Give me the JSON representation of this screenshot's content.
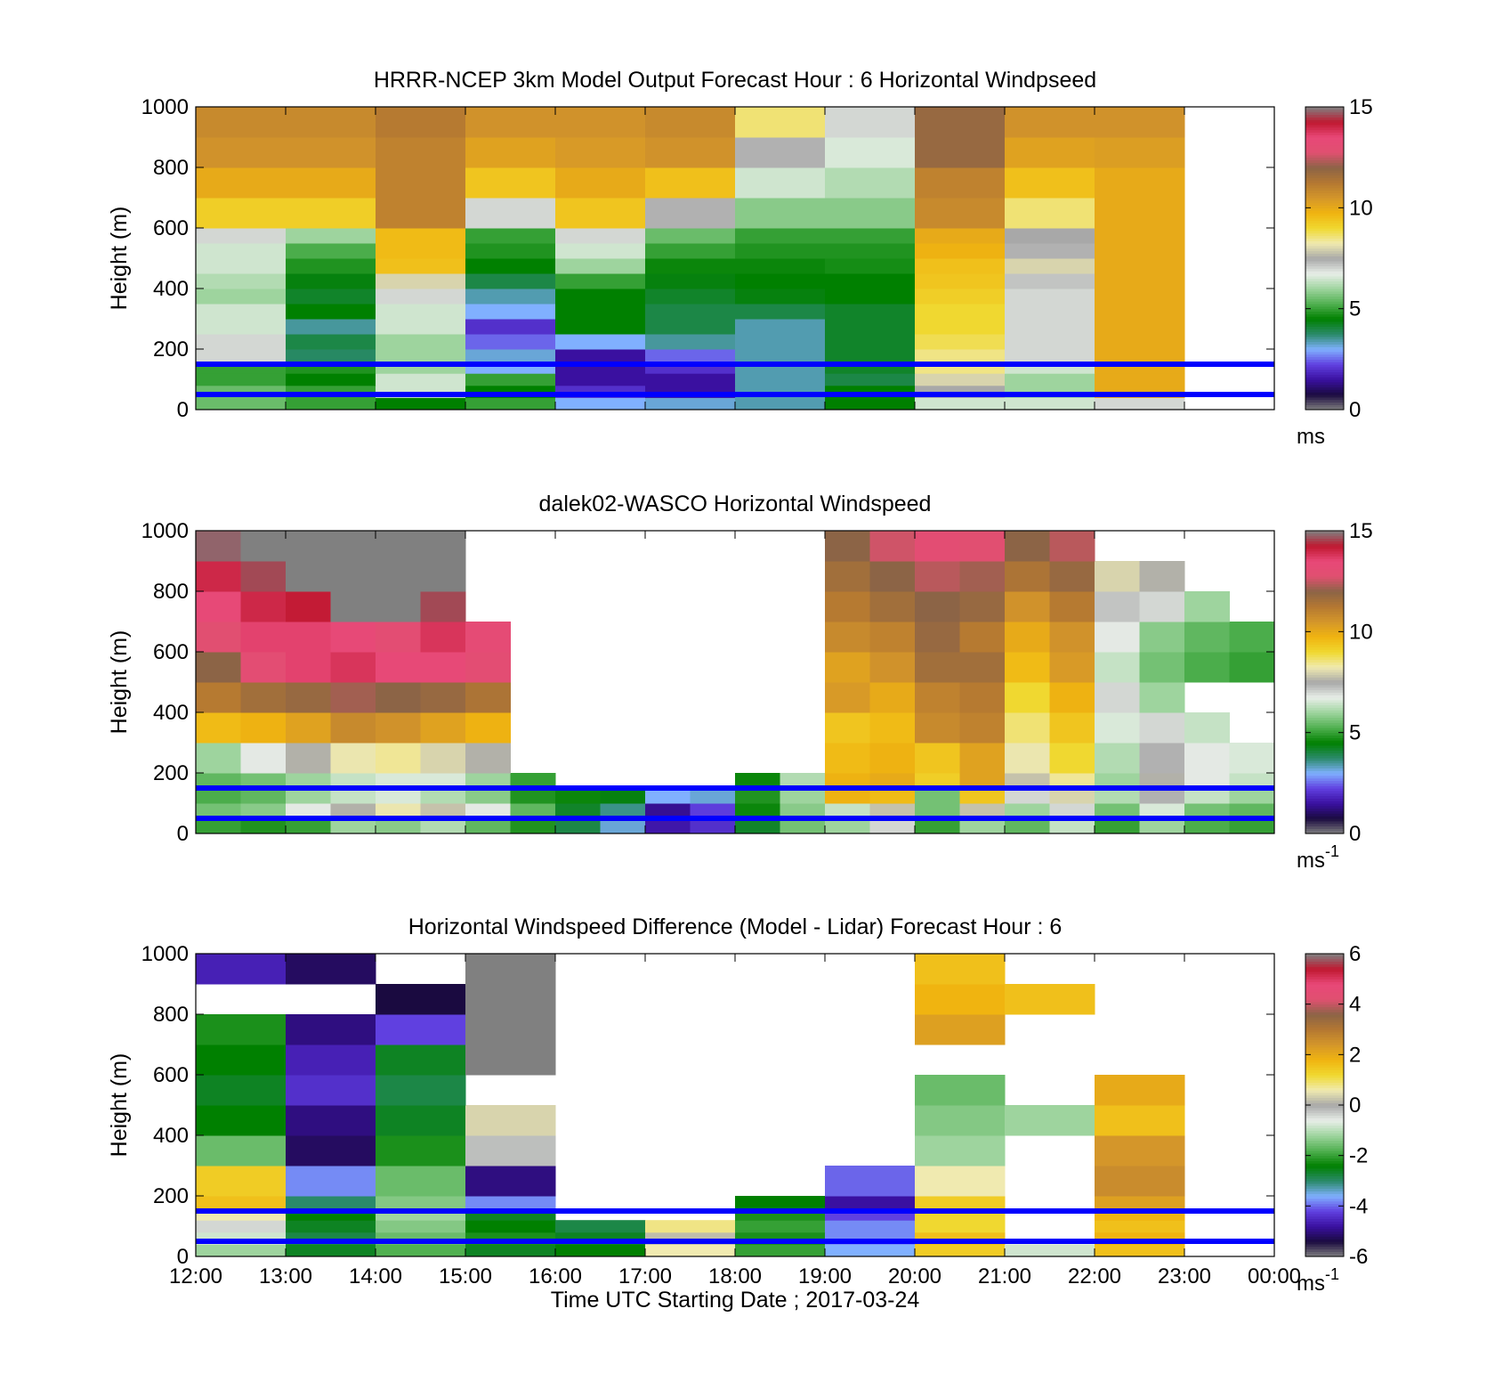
{
  "figure": {
    "xlabel": "Time UTC  Starting Date ; 2017-03-24",
    "xticks": [
      "12:00",
      "13:00",
      "14:00",
      "15:00",
      "16:00",
      "17:00",
      "18:00",
      "19:00",
      "20:00",
      "21:00",
      "22:00",
      "23:00",
      "00:00"
    ]
  },
  "colorbar_palette": [
    "#808080",
    "#1a0a40",
    "#3a10a0",
    "#6040e0",
    "#80b0ff",
    "#2a8a6a",
    "#008000",
    "#50b050",
    "#9ed49e",
    "#e8eee8",
    "#a8a8a8",
    "#f0eab0",
    "#f0d830",
    "#f0b410",
    "#d4962a",
    "#b47832",
    "#8c6446",
    "#e05070",
    "#e84878",
    "#c01830",
    "#808080"
  ],
  "chart_data": [
    {
      "type": "heatmap",
      "title": "HRRR-NCEP 3km Model Output   Forecast Hour : 6 Horizontal Windpseed",
      "ylabel": "Height (m)",
      "yticks": [
        "0",
        "200",
        "400",
        "600",
        "800",
        "1000"
      ],
      "ylim": [
        0,
        1000
      ],
      "xlim": [
        "12:00",
        "00:00"
      ],
      "colorbar": {
        "ticks": [
          "0",
          "5",
          "10",
          "15"
        ],
        "range": [
          0,
          15
        ],
        "unit": "ms",
        "unit_sup": ""
      },
      "reference_lines_m": [
        50,
        150
      ],
      "reference_line_color": "#0000ff",
      "heights_m": [
        40,
        80,
        120,
        160,
        200,
        250,
        300,
        350,
        400,
        450,
        500,
        550,
        600,
        700,
        800,
        900,
        1000
      ],
      "times": [
        "12:00",
        "13:00",
        "14:00",
        "15:00",
        "16:00",
        "17:00",
        "18:00",
        "19:00",
        "20:00",
        "21:00",
        "22:00"
      ],
      "values_ms": [
        [
          5.5,
          5.0,
          4.5,
          5.0,
          3.0,
          3.2,
          3.4,
          4.5,
          6.5,
          6.5,
          7.0
        ],
        [
          5.5,
          5.0,
          6.5,
          4.5,
          2.0,
          1.5,
          3.4,
          4.5,
          7.5,
          6.0,
          10.0
        ],
        [
          5.0,
          4.5,
          6.5,
          5.0,
          1.5,
          1.5,
          3.4,
          4.0,
          8.0,
          6.0,
          10.0
        ],
        [
          5.0,
          4.8,
          6.0,
          3.0,
          1.5,
          2.0,
          3.4,
          4.2,
          8.5,
          6.5,
          10.0
        ],
        [
          7.0,
          3.8,
          6.0,
          3.2,
          1.5,
          2.5,
          3.4,
          4.2,
          8.5,
          7.0,
          10.0
        ],
        [
          7.0,
          4.0,
          6.0,
          2.5,
          3.0,
          3.5,
          3.4,
          4.2,
          8.8,
          7.0,
          10.0
        ],
        [
          6.5,
          3.5,
          6.5,
          2.0,
          4.5,
          4.0,
          3.4,
          4.2,
          9.0,
          7.0,
          10.0
        ],
        [
          6.5,
          4.5,
          6.5,
          3.0,
          4.5,
          4.0,
          4.0,
          4.2,
          9.0,
          7.0,
          10.0
        ],
        [
          6.0,
          4.2,
          7.0,
          3.4,
          4.5,
          4.2,
          4.4,
          4.5,
          9.2,
          7.0,
          10.0
        ],
        [
          6.2,
          4.4,
          8.0,
          4.0,
          5.0,
          4.4,
          4.5,
          4.5,
          9.4,
          7.2,
          10.0
        ],
        [
          6.5,
          4.8,
          9.5,
          4.5,
          6.0,
          4.6,
          4.6,
          4.7,
          9.5,
          8.0,
          10.0
        ],
        [
          6.5,
          5.2,
          9.6,
          4.8,
          6.5,
          5.0,
          4.8,
          4.8,
          9.8,
          7.4,
          10.0
        ],
        [
          7.0,
          6.0,
          9.6,
          5.0,
          7.0,
          5.5,
          5.0,
          5.0,
          10.0,
          7.5,
          10.0
        ],
        [
          9.2,
          9.2,
          11.0,
          7.0,
          9.4,
          7.4,
          5.8,
          5.8,
          10.8,
          8.6,
          10.0
        ],
        [
          10.0,
          10.0,
          11.0,
          9.4,
          10.0,
          9.5,
          6.5,
          6.2,
          11.0,
          9.5,
          10.0
        ],
        [
          10.6,
          10.6,
          11.0,
          10.2,
          10.4,
          10.6,
          7.4,
          6.6,
          11.8,
          10.2,
          10.3
        ],
        [
          10.8,
          10.8,
          11.2,
          10.6,
          10.6,
          10.8,
          8.6,
          7.0,
          11.8,
          10.6,
          10.6
        ]
      ]
    },
    {
      "type": "heatmap",
      "title": "dalek02-WASCO  Horizontal Windspeed",
      "ylabel": "Height (m)",
      "yticks": [
        "0",
        "200",
        "400",
        "600",
        "800",
        "1000"
      ],
      "ylim": [
        0,
        1000
      ],
      "xlim": [
        "12:00",
        "00:00"
      ],
      "colorbar": {
        "ticks": [
          "0",
          "5",
          "10",
          "15"
        ],
        "range": [
          0,
          15
        ],
        "unit": "ms",
        "unit_sup": "-1"
      },
      "reference_lines_m": [
        50,
        150
      ],
      "reference_line_color": "#0000ff",
      "heights_m": [
        50,
        100,
        150,
        200,
        300,
        400,
        500,
        600,
        700,
        800,
        900,
        1000
      ],
      "times": [
        "12:00",
        "12:30",
        "13:00",
        "13:30",
        "14:00",
        "14:30",
        "15:00",
        "15:30",
        "16:00",
        "16:30",
        "17:00",
        "17:30",
        "18:00",
        "18:30",
        "19:00",
        "19:30",
        "20:00",
        "20:30",
        "21:00",
        "21:30",
        "22:00",
        "22:30",
        "23:00",
        "23:30"
      ],
      "values_ms": [
        [
          5.0,
          4.8,
          5.0,
          6.0,
          5.8,
          6.2,
          5.4,
          4.8,
          4.0,
          3.2,
          1.6,
          2.0,
          4.2,
          5.6,
          6.0,
          7.0,
          5.0,
          6.0,
          5.4,
          6.4,
          5.0,
          6.0,
          5.2,
          5.0
        ],
        [
          5.6,
          5.8,
          6.8,
          7.6,
          8.2,
          7.8,
          6.8,
          5.4,
          4.2,
          3.6,
          1.4,
          2.2,
          4.6,
          5.8,
          6.4,
          7.8,
          5.6,
          7.8,
          6.0,
          7.0,
          5.6,
          6.6,
          5.6,
          5.4
        ],
        [
          5.2,
          5.4,
          6.0,
          6.4,
          6.6,
          6.2,
          5.8,
          4.8,
          4.6,
          4.4,
          3.0,
          3.2,
          4.8,
          6.0,
          9.8,
          9.6,
          5.6,
          9.4,
          7.0,
          8.0,
          6.2,
          7.4,
          6.4,
          6.0
        ],
        [
          5.4,
          5.6,
          6.0,
          6.4,
          6.6,
          6.6,
          6.0,
          5.0,
          null,
          null,
          null,
          null,
          4.6,
          6.2,
          9.8,
          10.0,
          9.2,
          10.2,
          7.8,
          8.4,
          6.0,
          7.6,
          6.8,
          6.4
        ],
        [
          6.0,
          6.8,
          7.6,
          8.2,
          8.4,
          8.0,
          7.6,
          null,
          null,
          null,
          null,
          null,
          null,
          null,
          9.6,
          9.8,
          9.4,
          10.2,
          8.2,
          9.0,
          6.2,
          7.4,
          6.8,
          6.6
        ],
        [
          9.6,
          9.8,
          10.2,
          10.8,
          10.6,
          10.2,
          9.8,
          null,
          null,
          null,
          null,
          null,
          null,
          null,
          9.4,
          9.6,
          10.8,
          11.0,
          8.6,
          9.4,
          6.6,
          7.0,
          6.4,
          null
        ],
        [
          11.2,
          11.6,
          11.8,
          12.2,
          12.0,
          11.8,
          11.4,
          null,
          null,
          null,
          null,
          null,
          null,
          null,
          10.4,
          10.0,
          11.0,
          11.2,
          9.0,
          9.8,
          7.0,
          6.0,
          null,
          null
        ],
        [
          12.0,
          13.0,
          13.6,
          13.8,
          13.4,
          13.4,
          13.0,
          null,
          null,
          null,
          null,
          null,
          null,
          null,
          10.2,
          10.6,
          11.6,
          11.6,
          9.6,
          10.4,
          6.4,
          5.6,
          5.2,
          5.0
        ],
        [
          12.8,
          13.6,
          13.6,
          13.4,
          13.0,
          13.8,
          13.2,
          null,
          null,
          null,
          null,
          null,
          null,
          null,
          10.8,
          11.0,
          11.8,
          11.2,
          10.0,
          10.6,
          6.8,
          5.8,
          5.4,
          5.2
        ],
        [
          13.4,
          14.0,
          14.2,
          15.0,
          15.0,
          14.6,
          null,
          null,
          null,
          null,
          null,
          null,
          null,
          null,
          11.2,
          11.6,
          12.0,
          11.8,
          10.6,
          11.2,
          7.2,
          7.0,
          6.0,
          null
        ],
        [
          14.0,
          14.6,
          15.0,
          15.0,
          15.0,
          15.0,
          null,
          null,
          null,
          null,
          null,
          null,
          null,
          null,
          11.6,
          12.0,
          12.4,
          12.2,
          11.4,
          11.8,
          8.0,
          7.6,
          null,
          null
        ],
        [
          14.8,
          15.0,
          15.0,
          15.0,
          15.0,
          15.0,
          null,
          null,
          null,
          null,
          null,
          null,
          null,
          null,
          12.0,
          12.6,
          13.0,
          12.8,
          12.0,
          12.4,
          null,
          null,
          null,
          null
        ]
      ]
    },
    {
      "type": "heatmap",
      "title": "Horizontal Windspeed Difference (Model - Lidar) Forecast Hour : 6",
      "ylabel": "Height (m)",
      "yticks": [
        "0",
        "200",
        "400",
        "600",
        "800",
        "1000"
      ],
      "ylim": [
        0,
        1000
      ],
      "xlim": [
        "12:00",
        "00:00"
      ],
      "colorbar": {
        "ticks": [
          "-6",
          "-4",
          "-2",
          "0",
          "2",
          "4",
          "6"
        ],
        "range": [
          -6,
          6
        ],
        "unit": "ms",
        "unit_sup": "-1"
      },
      "reference_lines_m": [
        50,
        150
      ],
      "reference_line_color": "#0000ff",
      "heights_m": [
        40,
        80,
        120,
        160,
        200,
        300,
        400,
        500,
        600,
        700,
        800,
        900,
        1000
      ],
      "times": [
        "12:00",
        "13:00",
        "14:00",
        "15:00",
        "16:00",
        "17:00",
        "18:00",
        "19:00",
        "20:00",
        "21:00",
        "22:00"
      ],
      "values_ms": [
        [
          -1.2,
          -2.6,
          -1.8,
          -2.6,
          -2.4,
          0.6,
          -2.0,
          -3.6,
          1.4,
          -0.8,
          1.6
        ],
        [
          -0.8,
          -2.8,
          -1.6,
          -2.2,
          -2.6,
          0.2,
          -2.2,
          -3.8,
          1.6,
          null,
          1.8
        ],
        [
          -0.4,
          -2.6,
          -1.4,
          -2.4,
          -2.8,
          0.8,
          -2.0,
          -3.8,
          1.2,
          null,
          1.6
        ],
        [
          0.6,
          -2.4,
          -1.2,
          -2.6,
          null,
          null,
          -2.2,
          -4.2,
          1.2,
          null,
          1.8
        ],
        [
          1.6,
          -3.0,
          -1.4,
          -3.8,
          null,
          null,
          -2.4,
          -4.8,
          1.4,
          null,
          2.2
        ],
        [
          1.4,
          -3.8,
          -1.6,
          -5.0,
          null,
          null,
          null,
          -4.0,
          0.6,
          null,
          2.6
        ],
        [
          -1.6,
          -5.2,
          -2.2,
          -0.2,
          null,
          null,
          null,
          null,
          -1.2,
          null,
          2.4
        ],
        [
          -2.4,
          -5.0,
          -2.6,
          0.4,
          null,
          null,
          null,
          null,
          -1.4,
          -1.2,
          1.6
        ],
        [
          -2.6,
          -4.4,
          -2.8,
          null,
          null,
          null,
          null,
          null,
          -1.6,
          null,
          2.0
        ],
        [
          -2.4,
          -4.6,
          -2.6,
          6.0,
          null,
          null,
          null,
          null,
          null,
          null,
          null
        ],
        [
          -2.2,
          -5.0,
          -4.2,
          6.0,
          null,
          null,
          null,
          null,
          2.2,
          null,
          null
        ],
        [
          null,
          null,
          -5.4,
          6.0,
          null,
          null,
          null,
          null,
          1.8,
          1.6,
          null
        ],
        [
          -4.6,
          -5.2,
          null,
          6.0,
          null,
          null,
          null,
          null,
          1.6,
          null,
          null
        ]
      ]
    }
  ]
}
